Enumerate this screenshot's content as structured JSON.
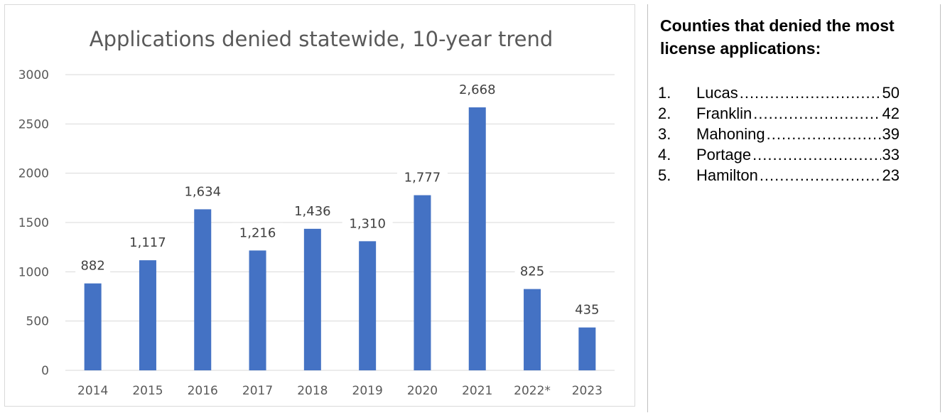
{
  "chart_data": {
    "type": "bar",
    "title": "Applications denied statewide, 10-year trend",
    "xlabel": "",
    "ylabel": "",
    "categories": [
      "2014",
      "2015",
      "2016",
      "2017",
      "2018",
      "2019",
      "2020",
      "2021",
      "2022*",
      "2023"
    ],
    "values": [
      882,
      1117,
      1634,
      1216,
      1436,
      1310,
      1777,
      2668,
      825,
      435
    ],
    "data_labels": [
      "882",
      "1,117",
      "1,634",
      "1,216",
      "1,436",
      "1,310",
      "1,777",
      "2,668",
      "825",
      "435"
    ],
    "ylim": [
      0,
      3000
    ],
    "yticks": [
      0,
      500,
      1000,
      1500,
      2000,
      2500,
      3000
    ],
    "grid": true,
    "legend": "none",
    "bar_color": "#4472C4",
    "gridline_color": "#d9d9d9"
  },
  "sidebar": {
    "title": "Counties that denied the most license applications:",
    "counties": [
      {
        "rank": "1.",
        "name": "Lucas",
        "value": "50"
      },
      {
        "rank": "2.",
        "name": "Franklin",
        "value": "42"
      },
      {
        "rank": "3.",
        "name": "Mahoning",
        "value": "39"
      },
      {
        "rank": "4.",
        "name": "Portage",
        "value": "33"
      },
      {
        "rank": "5.",
        "name": "Hamilton",
        "value": "23"
      }
    ]
  }
}
